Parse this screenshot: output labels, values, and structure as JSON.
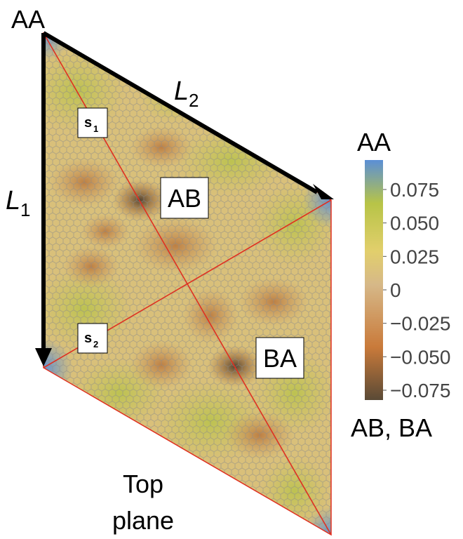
{
  "corner_labels": {
    "aa_top": "AA",
    "ab_region": "AB",
    "ba_region": "BA"
  },
  "vectors": {
    "l1_main": "L",
    "l1_sub": "1",
    "l2_main": "L",
    "l2_sub": "2"
  },
  "paths": {
    "s1_main": "s",
    "s1_sub": "1",
    "s2_main": "s",
    "s2_sub": "2"
  },
  "plane_label": {
    "line1": "Top",
    "line2": "plane"
  },
  "colorbar": {
    "top_label": "AA",
    "bottom_label": "AB, BA",
    "ticks": [
      "0.075",
      "0.050",
      "0.025",
      "0",
      "−0.025",
      "−0.050",
      "−0.075"
    ],
    "colors": {
      "max": "#5b8fd6",
      "high": "#b7c447",
      "mid": "#e2cf6c",
      "zero": "#d6b888",
      "low": "#c97a3a",
      "min": "#5a4a36"
    }
  },
  "colors": {
    "arrow": "#000000",
    "path_line": "#e03020",
    "lattice": "#8a8a8a"
  }
}
